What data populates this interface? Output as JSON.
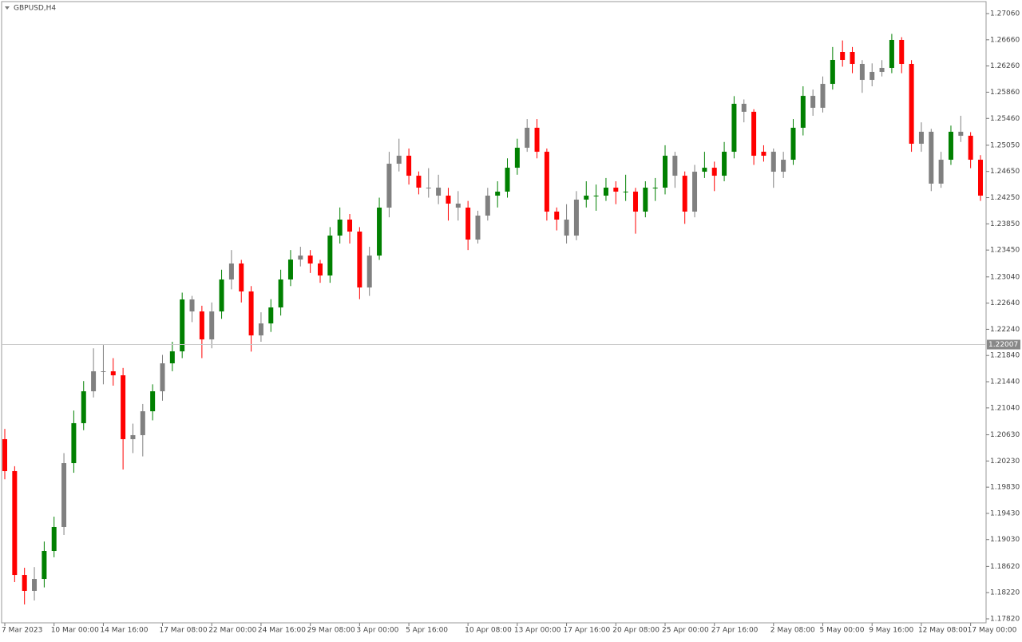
{
  "chart_data": {
    "type": "candlestick",
    "title": "GBPUSD,H4",
    "categories": [
      "7 Mar 2023",
      null,
      null,
      null,
      null,
      "10 Mar 00:00",
      null,
      null,
      null,
      null,
      "14 Mar 16:00",
      null,
      null,
      null,
      null,
      null,
      "17 Mar 08:00",
      null,
      null,
      null,
      null,
      "22 Mar 00:00",
      null,
      null,
      null,
      null,
      "24 Mar 16:00",
      null,
      null,
      null,
      null,
      "29 Mar 08:00",
      null,
      null,
      null,
      null,
      "3 Apr 00:00",
      null,
      null,
      null,
      null,
      "5 Apr 16:00",
      null,
      null,
      null,
      null,
      null,
      "10 Apr 08:00",
      null,
      null,
      null,
      null,
      "13 Apr 00:00",
      null,
      null,
      null,
      null,
      "17 Apr 16:00",
      null,
      null,
      null,
      null,
      "20 Apr 08:00",
      null,
      null,
      null,
      null,
      "25 Apr 00:00",
      null,
      null,
      null,
      null,
      "27 Apr 16:00",
      null,
      null,
      null,
      null,
      null,
      "2 May 08:00",
      null,
      null,
      null,
      null,
      "5 May 00:00",
      null,
      null,
      null,
      null,
      "9 May 16:00",
      null,
      null,
      null,
      null,
      "12 May 08:00",
      null,
      null,
      null,
      null,
      "17 May 00:00",
      null
    ],
    "open": [
      1.20563,
      1.20075,
      1.1849,
      1.18247,
      1.18429,
      1.18856,
      1.19222,
      1.20197,
      1.20807,
      1.21294,
      1.21599,
      1.21599,
      1.21538,
      1.20563,
      1.20624,
      1.20989,
      1.21294,
      1.21721,
      1.21904,
      1.22696,
      1.22513,
      1.22086,
      1.22513,
      1.23001,
      1.23245,
      1.22818,
      1.22147,
      1.2233,
      1.22574,
      1.23001,
      1.23305,
      1.23366,
      1.23245,
      1.23062,
      1.23671,
      1.23915,
      1.23732,
      1.22879,
      1.23366,
      1.24098,
      1.24768,
      1.2489,
      1.24585,
      1.24403,
      1.24403,
      1.24281,
      1.24159,
      1.24098,
      1.2361,
      1.23976,
      1.24281,
      1.24342,
      1.24707,
      1.25012,
      1.25317,
      1.24951,
      1.24037,
      1.23915,
      1.23671,
      1.2422,
      1.24281,
      1.24281,
      1.24403,
      1.24342,
      1.24342,
      1.24037,
      1.24403,
      1.24403,
      1.2489,
      1.24585,
      1.24037,
      1.24646,
      1.24707,
      1.24585,
      1.24951,
      1.25683,
      1.25561,
      1.2489,
      1.24951,
      1.24646,
      1.24829,
      1.25317,
      1.25804,
      1.25622,
      1.25987,
      1.26353,
      1.26475,
      1.26292,
      1.26048,
      1.2617,
      1.26231,
      1.26658,
      1.26292,
      1.25073,
      1.25256,
      1.24464,
      1.24829,
      1.25256,
      1.25195,
      1.24829
    ],
    "high": [
      1.2072,
      1.2015,
      1.186,
      1.1861,
      1.19,
      1.1938,
      1.2035,
      1.21,
      1.2145,
      1.2195,
      1.22,
      1.218,
      1.2165,
      1.208,
      1.211,
      1.214,
      1.2185,
      1.2205,
      1.228,
      1.2275,
      1.226,
      1.2265,
      1.2315,
      1.2345,
      1.233,
      1.229,
      1.225,
      1.227,
      1.2315,
      1.2345,
      1.235,
      1.2345,
      1.233,
      1.238,
      1.241,
      1.24,
      1.238,
      1.235,
      1.2425,
      1.2495,
      1.2515,
      1.25,
      1.2465,
      1.247,
      1.246,
      1.244,
      1.2435,
      1.242,
      1.2405,
      1.244,
      1.245,
      1.2485,
      1.2515,
      1.2545,
      1.2545,
      1.25,
      1.241,
      1.2415,
      1.2435,
      1.245,
      1.2445,
      1.2455,
      1.245,
      1.246,
      1.244,
      1.245,
      1.2455,
      1.2505,
      1.2495,
      1.2465,
      1.2475,
      1.2495,
      1.248,
      1.251,
      1.258,
      1.2575,
      1.256,
      1.2505,
      1.25,
      1.2495,
      1.2545,
      1.2595,
      1.259,
      1.261,
      1.2655,
      1.2665,
      1.2655,
      1.2635,
      1.263,
      1.2635,
      1.2675,
      1.267,
      1.2635,
      1.254,
      1.253,
      1.2495,
      1.2535,
      1.255,
      1.2525,
      1.249
    ],
    "low": [
      1.1995,
      1.1838,
      1.1804,
      1.181,
      1.183,
      1.1876,
      1.191,
      1.2005,
      1.207,
      1.212,
      1.214,
      1.2138,
      1.201,
      1.2035,
      1.203,
      1.2085,
      1.2115,
      1.216,
      1.218,
      1.2235,
      1.218,
      1.2195,
      1.224,
      1.2285,
      1.2265,
      1.219,
      1.2205,
      1.222,
      1.2245,
      1.229,
      1.232,
      1.231,
      1.2295,
      1.2295,
      1.2355,
      1.2355,
      1.227,
      1.2275,
      1.233,
      1.2395,
      1.2465,
      1.2445,
      1.243,
      1.2425,
      1.2415,
      1.239,
      1.239,
      1.2345,
      1.2355,
      1.239,
      1.241,
      1.2425,
      1.246,
      1.2495,
      1.2485,
      1.239,
      1.2375,
      1.2355,
      1.236,
      1.241,
      1.2405,
      1.242,
      1.2415,
      1.242,
      1.237,
      1.2395,
      1.242,
      1.243,
      1.244,
      1.2385,
      1.2395,
      1.2455,
      1.2435,
      1.245,
      1.2485,
      1.254,
      1.2475,
      1.248,
      1.244,
      1.2455,
      1.2475,
      1.252,
      1.255,
      1.2555,
      1.259,
      1.2625,
      1.2615,
      1.2585,
      1.2595,
      1.261,
      1.2615,
      1.2615,
      1.2495,
      1.2495,
      1.2435,
      1.244,
      1.2475,
      1.251,
      1.247,
      1.242
    ],
    "close": [
      1.20075,
      1.1849,
      1.18247,
      1.18429,
      1.18856,
      1.19222,
      1.20197,
      1.20807,
      1.21294,
      1.21599,
      1.21599,
      1.21538,
      1.20563,
      1.20624,
      1.20989,
      1.21294,
      1.21721,
      1.21904,
      1.22696,
      1.22513,
      1.22086,
      1.22513,
      1.23001,
      1.23245,
      1.22818,
      1.22147,
      1.2233,
      1.22574,
      1.23001,
      1.23305,
      1.23366,
      1.23245,
      1.23062,
      1.23671,
      1.23915,
      1.23732,
      1.22879,
      1.23366,
      1.24098,
      1.24768,
      1.2489,
      1.24585,
      1.24403,
      1.24403,
      1.24281,
      1.24159,
      1.24098,
      1.2361,
      1.23976,
      1.24281,
      1.24342,
      1.24707,
      1.25012,
      1.25317,
      1.24951,
      1.24037,
      1.23915,
      1.23671,
      1.2422,
      1.24281,
      1.24281,
      1.24403,
      1.24342,
      1.24342,
      1.24037,
      1.24403,
      1.24403,
      1.2489,
      1.24585,
      1.24037,
      1.24646,
      1.24707,
      1.24585,
      1.24951,
      1.25683,
      1.25561,
      1.2489,
      1.24951,
      1.24646,
      1.24829,
      1.25317,
      1.25804,
      1.25622,
      1.25987,
      1.26353,
      1.26475,
      1.26292,
      1.26048,
      1.2617,
      1.26231,
      1.26658,
      1.26292,
      1.25073,
      1.25256,
      1.24464,
      1.24829,
      1.25256,
      1.25195,
      1.24829,
      1.24281
    ],
    "colors": [
      "red",
      "red",
      "red",
      "gray",
      "green",
      "green",
      "gray",
      "green",
      "green",
      "gray",
      "gray",
      "red",
      "red",
      "gray",
      "gray",
      "green",
      "gray",
      "green",
      "green",
      "gray",
      "red",
      "gray",
      "green",
      "gray",
      "red",
      "red",
      "gray",
      "green",
      "green",
      "green",
      "gray",
      "red",
      "red",
      "green",
      "green",
      "red",
      "red",
      "gray",
      "green",
      "gray",
      "gray",
      "red",
      "red",
      "gray",
      "gray",
      "red",
      "gray",
      "red",
      "gray",
      "gray",
      "green",
      "green",
      "green",
      "gray",
      "red",
      "red",
      "red",
      "gray",
      "gray",
      "green",
      "green",
      "green",
      "red",
      "green",
      "red",
      "green",
      "green",
      "green",
      "gray",
      "red",
      "gray",
      "green",
      "red",
      "green",
      "green",
      "gray",
      "red",
      "red",
      "gray",
      "gray",
      "green",
      "green",
      "gray",
      "gray",
      "green",
      "red",
      "red",
      "gray",
      "gray",
      "gray",
      "green",
      "red",
      "red",
      "gray",
      "gray",
      "gray",
      "green",
      "gray",
      "red",
      "red"
    ],
    "ylim": [
      1.17759,
      1.27243
    ],
    "yticks": [
      {
        "value": 1.2706,
        "label": "1.27060"
      },
      {
        "value": 1.2666,
        "label": "1.26660"
      },
      {
        "value": 1.2626,
        "label": "1.26260"
      },
      {
        "value": 1.2586,
        "label": "1.25860"
      },
      {
        "value": 1.2546,
        "label": "1.25460"
      },
      {
        "value": 1.2505,
        "label": "1.25050"
      },
      {
        "value": 1.2465,
        "label": "1.24650"
      },
      {
        "value": 1.2425,
        "label": "1.24250"
      },
      {
        "value": 1.2385,
        "label": "1.23850"
      },
      {
        "value": 1.2345,
        "label": "1.23450"
      },
      {
        "value": 1.2304,
        "label": "1.23040"
      },
      {
        "value": 1.2264,
        "label": "1.22640"
      },
      {
        "value": 1.2224,
        "label": "1.22240"
      },
      {
        "value": 1.2184,
        "label": "1.21840"
      },
      {
        "value": 1.2144,
        "label": "1.21440"
      },
      {
        "value": 1.2104,
        "label": "1.21040"
      },
      {
        "value": 1.2063,
        "label": "1.20630"
      },
      {
        "value": 1.2023,
        "label": "1.20230"
      },
      {
        "value": 1.1983,
        "label": "1.19830"
      },
      {
        "value": 1.1943,
        "label": "1.19430"
      },
      {
        "value": 1.1903,
        "label": "1.19030"
      },
      {
        "value": 1.1862,
        "label": "1.18620"
      },
      {
        "value": 1.1822,
        "label": "1.18220"
      },
      {
        "value": 1.1782,
        "label": "1.17820"
      }
    ],
    "current_price": 1.22007
  }
}
